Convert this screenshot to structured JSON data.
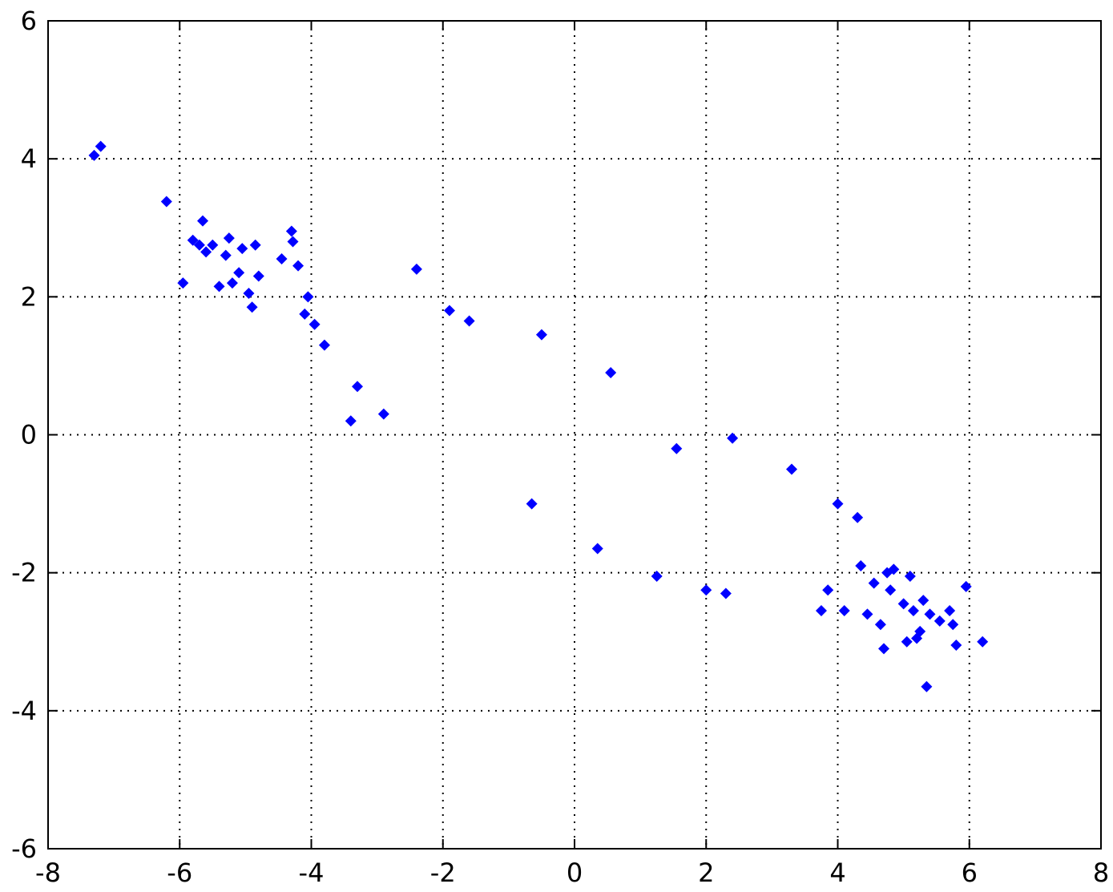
{
  "chart_data": {
    "type": "scatter",
    "title": "",
    "xlabel": "",
    "ylabel": "",
    "xlim": [
      -8,
      8
    ],
    "ylim": [
      -6,
      6
    ],
    "x_ticks": [
      -8,
      -6,
      -4,
      -2,
      0,
      2,
      4,
      6,
      8
    ],
    "y_ticks": [
      -6,
      -4,
      -2,
      0,
      2,
      4,
      6
    ],
    "x_tick_labels": [
      "-8",
      "-6",
      "-4",
      "-2",
      "0",
      "2",
      "4",
      "6",
      "8"
    ],
    "y_tick_labels": [
      "-6",
      "-4",
      "-2",
      "0",
      "2",
      "4",
      "6"
    ],
    "grid": true,
    "marker": "diamond",
    "color": "#0000ff",
    "series": [
      {
        "points": [
          [
            -7.3,
            4.05
          ],
          [
            -7.2,
            4.18
          ],
          [
            -6.2,
            3.38
          ],
          [
            -5.95,
            2.2
          ],
          [
            -5.8,
            2.82
          ],
          [
            -5.7,
            2.75
          ],
          [
            -5.65,
            3.1
          ],
          [
            -5.6,
            2.65
          ],
          [
            -5.5,
            2.75
          ],
          [
            -5.4,
            2.15
          ],
          [
            -5.3,
            2.6
          ],
          [
            -5.25,
            2.85
          ],
          [
            -5.2,
            2.2
          ],
          [
            -5.1,
            2.35
          ],
          [
            -5.05,
            2.7
          ],
          [
            -4.95,
            2.05
          ],
          [
            -4.9,
            1.85
          ],
          [
            -4.85,
            2.75
          ],
          [
            -4.8,
            2.3
          ],
          [
            -4.45,
            2.55
          ],
          [
            -4.3,
            2.95
          ],
          [
            -4.28,
            2.8
          ],
          [
            -4.2,
            2.45
          ],
          [
            -4.1,
            1.75
          ],
          [
            -4.05,
            2.0
          ],
          [
            -3.95,
            1.6
          ],
          [
            -3.8,
            1.3
          ],
          [
            -3.4,
            0.2
          ],
          [
            -3.3,
            0.7
          ],
          [
            -2.9,
            0.3
          ],
          [
            -2.4,
            2.4
          ],
          [
            -1.9,
            1.8
          ],
          [
            -1.6,
            1.65
          ],
          [
            -0.65,
            -1.0
          ],
          [
            -0.5,
            1.45
          ],
          [
            0.35,
            -1.65
          ],
          [
            0.55,
            0.9
          ],
          [
            1.25,
            -2.05
          ],
          [
            1.55,
            -0.2
          ],
          [
            2.0,
            -2.25
          ],
          [
            2.3,
            -2.3
          ],
          [
            2.4,
            -0.05
          ],
          [
            3.3,
            -0.5
          ],
          [
            3.75,
            -2.55
          ],
          [
            3.85,
            -2.25
          ],
          [
            4.0,
            -1.0
          ],
          [
            4.1,
            -2.55
          ],
          [
            4.3,
            -1.2
          ],
          [
            4.35,
            -1.9
          ],
          [
            4.45,
            -2.6
          ],
          [
            4.55,
            -2.15
          ],
          [
            4.65,
            -2.75
          ],
          [
            4.7,
            -3.1
          ],
          [
            4.75,
            -2.0
          ],
          [
            4.8,
            -2.25
          ],
          [
            4.85,
            -1.95
          ],
          [
            5.0,
            -2.45
          ],
          [
            5.05,
            -3.0
          ],
          [
            5.1,
            -2.05
          ],
          [
            5.15,
            -2.55
          ],
          [
            5.2,
            -2.95
          ],
          [
            5.25,
            -2.85
          ],
          [
            5.3,
            -2.4
          ],
          [
            5.35,
            -3.65
          ],
          [
            5.4,
            -2.6
          ],
          [
            5.55,
            -2.7
          ],
          [
            5.7,
            -2.55
          ],
          [
            5.75,
            -2.75
          ],
          [
            5.8,
            -3.05
          ],
          [
            5.95,
            -2.2
          ],
          [
            6.2,
            -3.0
          ]
        ]
      }
    ]
  }
}
